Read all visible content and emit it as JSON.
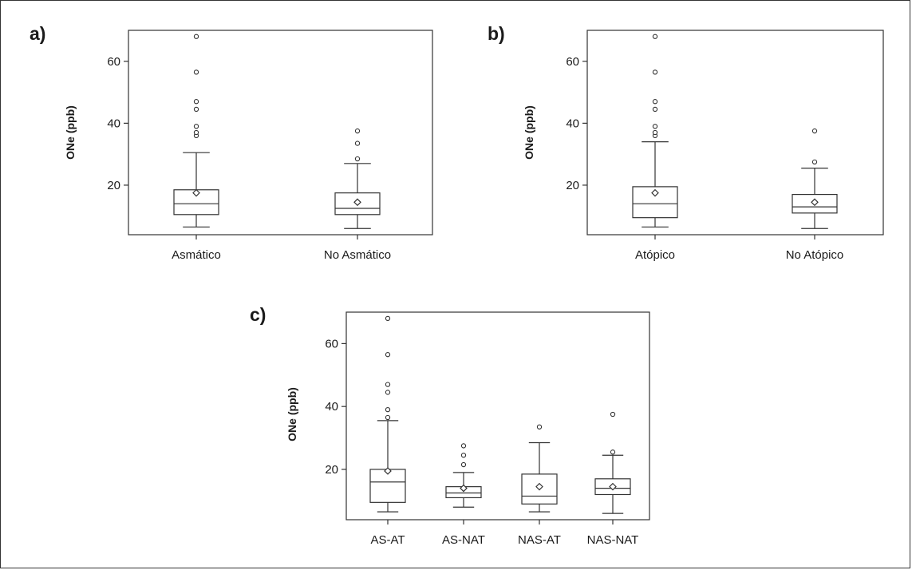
{
  "chart_data": [
    {
      "type": "boxplot",
      "panel_label": "a)",
      "ylabel": "ONe (ppb)",
      "yticks": [
        20,
        40,
        60
      ],
      "ylim": [
        4,
        70
      ],
      "categories": [
        "Asmático",
        "No Asmático"
      ],
      "boxes": [
        {
          "whisker_low": 6.5,
          "q1": 10.5,
          "median": 14,
          "q3": 18.5,
          "whisker_high": 30.5,
          "mean": 17.5,
          "outliers": [
            36,
            37,
            39,
            44.5,
            47,
            56.5,
            68
          ]
        },
        {
          "whisker_low": 6,
          "q1": 10.5,
          "median": 12.5,
          "q3": 17.5,
          "whisker_high": 27,
          "mean": 14.5,
          "outliers": [
            28.5,
            33.5,
            37.5
          ]
        }
      ]
    },
    {
      "type": "boxplot",
      "panel_label": "b)",
      "ylabel": "ONe (ppb)",
      "yticks": [
        20,
        40,
        60
      ],
      "ylim": [
        4,
        70
      ],
      "categories": [
        "Atópico",
        "No Atópico"
      ],
      "boxes": [
        {
          "whisker_low": 6.5,
          "q1": 9.5,
          "median": 14,
          "q3": 19.5,
          "whisker_high": 34,
          "mean": 17.5,
          "outliers": [
            36,
            37,
            39,
            44.5,
            47,
            56.5,
            68
          ]
        },
        {
          "whisker_low": 6,
          "q1": 11,
          "median": 13,
          "q3": 17,
          "whisker_high": 25.5,
          "mean": 14.5,
          "outliers": [
            27.5,
            37.5
          ]
        }
      ]
    },
    {
      "type": "boxplot",
      "panel_label": "c)",
      "ylabel": "ONe (ppb)",
      "yticks": [
        20,
        40,
        60
      ],
      "ylim": [
        4,
        70
      ],
      "categories": [
        "AS-AT",
        "AS-NAT",
        "NAS-AT",
        "NAS-NAT"
      ],
      "boxes": [
        {
          "whisker_low": 6.5,
          "q1": 9.5,
          "median": 16,
          "q3": 20,
          "whisker_high": 35.5,
          "mean": 19.5,
          "outliers": [
            36.5,
            39,
            44.5,
            47,
            56.5,
            68
          ]
        },
        {
          "whisker_low": 8,
          "q1": 11,
          "median": 12.5,
          "q3": 14.5,
          "whisker_high": 19,
          "mean": 14,
          "outliers": [
            21.5,
            24.5,
            27.5
          ]
        },
        {
          "whisker_low": 6.5,
          "q1": 9,
          "median": 11.5,
          "q3": 18.5,
          "whisker_high": 28.5,
          "mean": 14.5,
          "outliers": [
            33.5
          ]
        },
        {
          "whisker_low": 6,
          "q1": 12,
          "median": 14,
          "q3": 17,
          "whisker_high": 24.5,
          "mean": 14.5,
          "outliers": [
            25.5,
            37.5
          ]
        }
      ]
    }
  ]
}
